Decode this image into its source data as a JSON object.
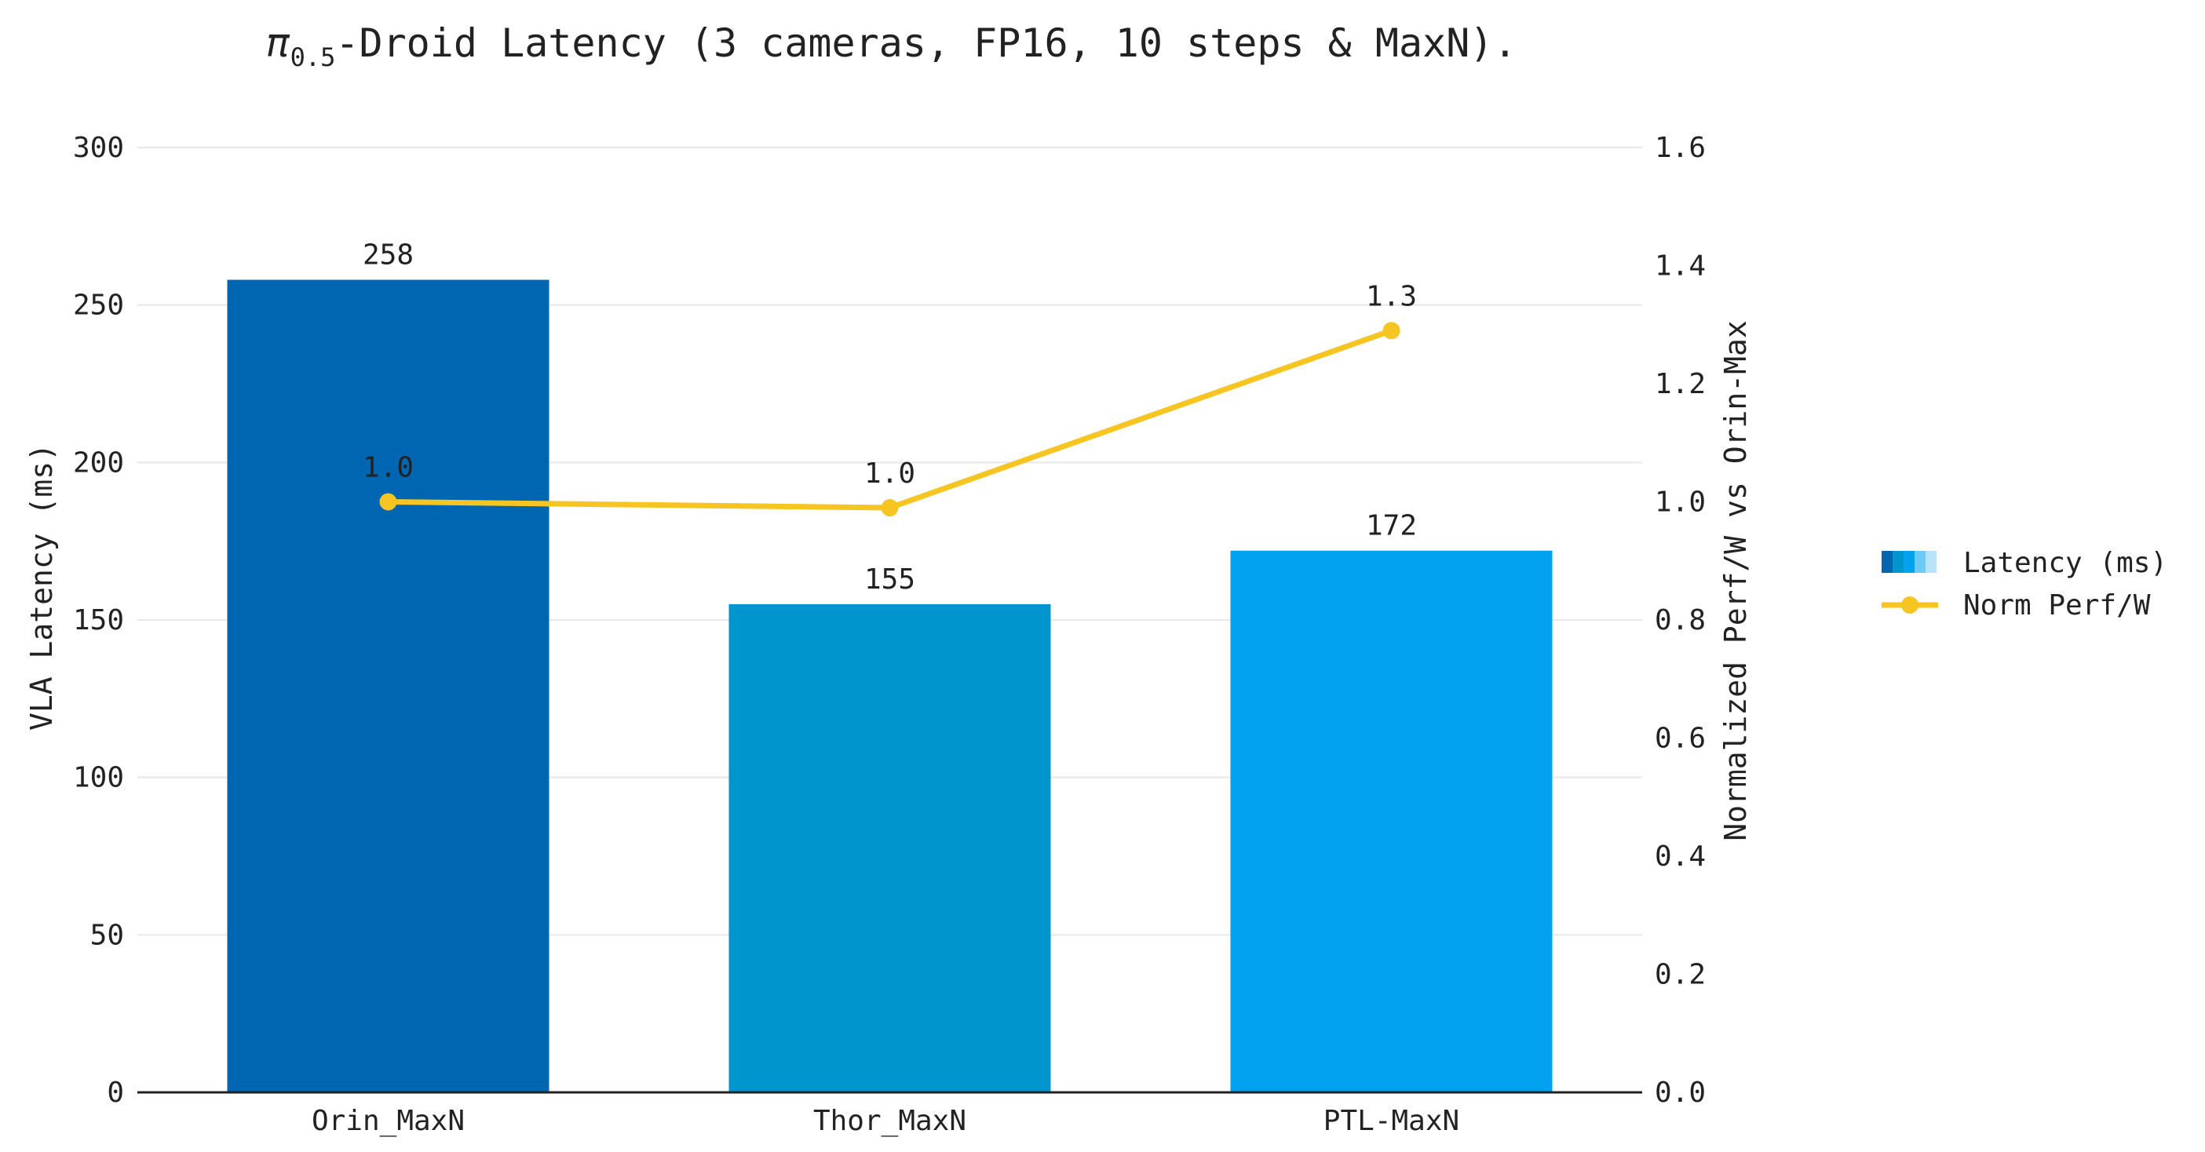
{
  "chart_data": {
    "type": "bar",
    "title_symbol": "π",
    "title_subscript": "0.5",
    "title_rest": "-Droid Latency (3 cameras, FP16, 10 steps & MaxN).",
    "categories": [
      "Orin_MaxN",
      "Thor_MaxN",
      "PTL-MaxN"
    ],
    "ylabel": "VLA Latency (ms)",
    "y2label": "Normalized Perf/W vs Orin-Max",
    "ylim": [
      0,
      300
    ],
    "y2lim": [
      0,
      1.6
    ],
    "y_ticks": [
      "0",
      "50",
      "100",
      "150",
      "200",
      "250",
      "300"
    ],
    "y2_ticks": [
      "0.0",
      "0.2",
      "0.4",
      "0.6",
      "0.8",
      "1.0",
      "1.2",
      "1.4",
      "1.6"
    ],
    "grid": true,
    "legend_position": "right",
    "series": [
      {
        "name": "Latency (ms)",
        "type": "bar",
        "axis": "left",
        "values": [
          258,
          155,
          172
        ],
        "labels": [
          "258",
          "155",
          "172"
        ],
        "colors": [
          "#0066b1",
          "#0095cc",
          "#02a2f0"
        ]
      },
      {
        "name": "Norm Perf/W",
        "type": "line",
        "axis": "right",
        "values": [
          1.0,
          0.99,
          1.29
        ],
        "labels": [
          "1.0",
          "1.0",
          "1.3"
        ],
        "color": "#f6c522"
      }
    ]
  }
}
